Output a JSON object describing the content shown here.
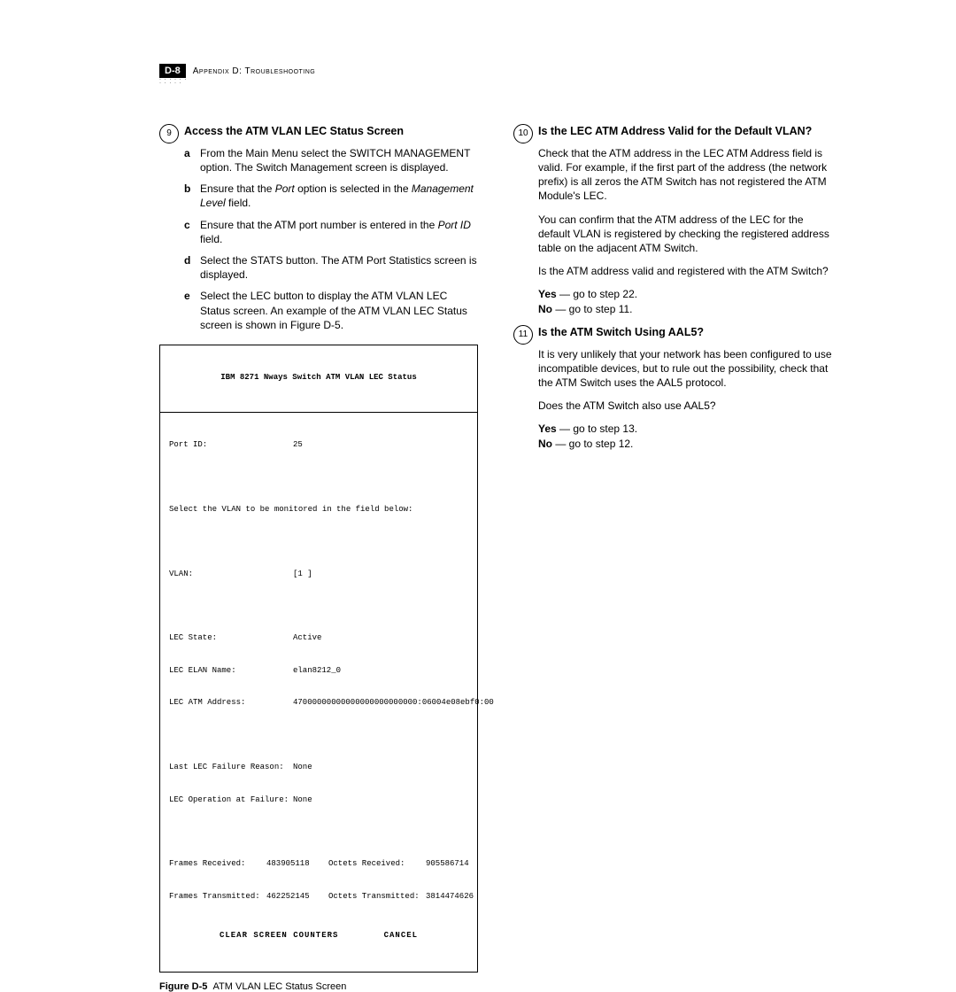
{
  "header": {
    "page_badge": "D-8",
    "appendix": "Appendix D: Troubleshooting"
  },
  "left": {
    "step9": {
      "num": "9",
      "title": "Access the ATM VLAN LEC Status Screen",
      "a": "From the Main Menu select the SWITCH MANAGEMENT option. The Switch Management screen is displayed.",
      "b_pre": "Ensure that the ",
      "b_i1": "Port",
      "b_mid": " option is selected in the ",
      "b_i2": "Management Level",
      "b_post": " field.",
      "c_pre": "Ensure that the ATM port number is entered in the ",
      "c_i": "Port ID",
      "c_post": " field.",
      "d": "Select the STATS button. The ATM Port Statistics screen is displayed.",
      "e": "Select the LEC button to display the ATM VLAN LEC Status screen. An example of the ATM VLAN LEC Status screen is shown in Figure D-5."
    },
    "terminal": {
      "title": "IBM 8271 Nways Switch ATM VLAN LEC Status",
      "port_id_k": "Port ID:",
      "port_id_v": "25",
      "select_line": "Select the VLAN to be monitored in the field below:",
      "vlan_k": "VLAN:",
      "vlan_v": "[1 ]",
      "lec_state_k": "LEC State:",
      "lec_state_v": "Active",
      "elan_k": "LEC ELAN Name:",
      "elan_v": "elan8212_0",
      "atm_addr_k": "LEC ATM Address:",
      "atm_addr_v": "47000000000000000000000000:06004e08ebf0:00",
      "fail_reason_k": "Last LEC Failure Reason:",
      "fail_reason_v": "None",
      "lec_op_k": "LEC Operation at Failure:",
      "lec_op_v": "None",
      "fr_rx_k": "Frames Received:",
      "fr_rx_v": "483905118",
      "oc_rx_k": "Octets Received:",
      "oc_rx_v": "905586714",
      "fr_tx_k": "Frames Transmitted:",
      "fr_tx_v": "462252145",
      "oc_tx_k": "Octets Transmitted:",
      "oc_tx_v": "3814474626",
      "footer": "CLEAR SCREEN COUNTERS        CANCEL"
    },
    "figure_label": "Figure D-5",
    "figure_caption": "ATM VLAN LEC Status Screen"
  },
  "right": {
    "step10": {
      "num": "10",
      "title": "Is the LEC ATM Address Valid for the Default VLAN?",
      "p1": "Check that the ATM address in the LEC ATM Address field is valid. For example, if the first part of the address (the network prefix) is all zeros the ATM Switch has not registered the ATM Module's LEC.",
      "p2": "You can confirm that the ATM address of the LEC for the default VLAN is registered by checking the registered address table on the adjacent ATM Switch.",
      "p3": "Is the ATM address valid and registered with the ATM Switch?",
      "yes_label": "Yes",
      "yes_text": " — go to step 22.",
      "no_label": "No",
      "no_text": " — go to step 11."
    },
    "step11": {
      "num": "11",
      "title": "Is the ATM Switch Using AAL5?",
      "p1": "It is very unlikely that your network has been configured to use incompatible devices, but to rule out the possibility, check that the ATM Switch uses the AAL5 protocol.",
      "p2": "Does the ATM Switch also use AAL5?",
      "yes_label": "Yes",
      "yes_text": " — go to step 13.",
      "no_label": "No",
      "no_text": " — go to step 12."
    }
  }
}
